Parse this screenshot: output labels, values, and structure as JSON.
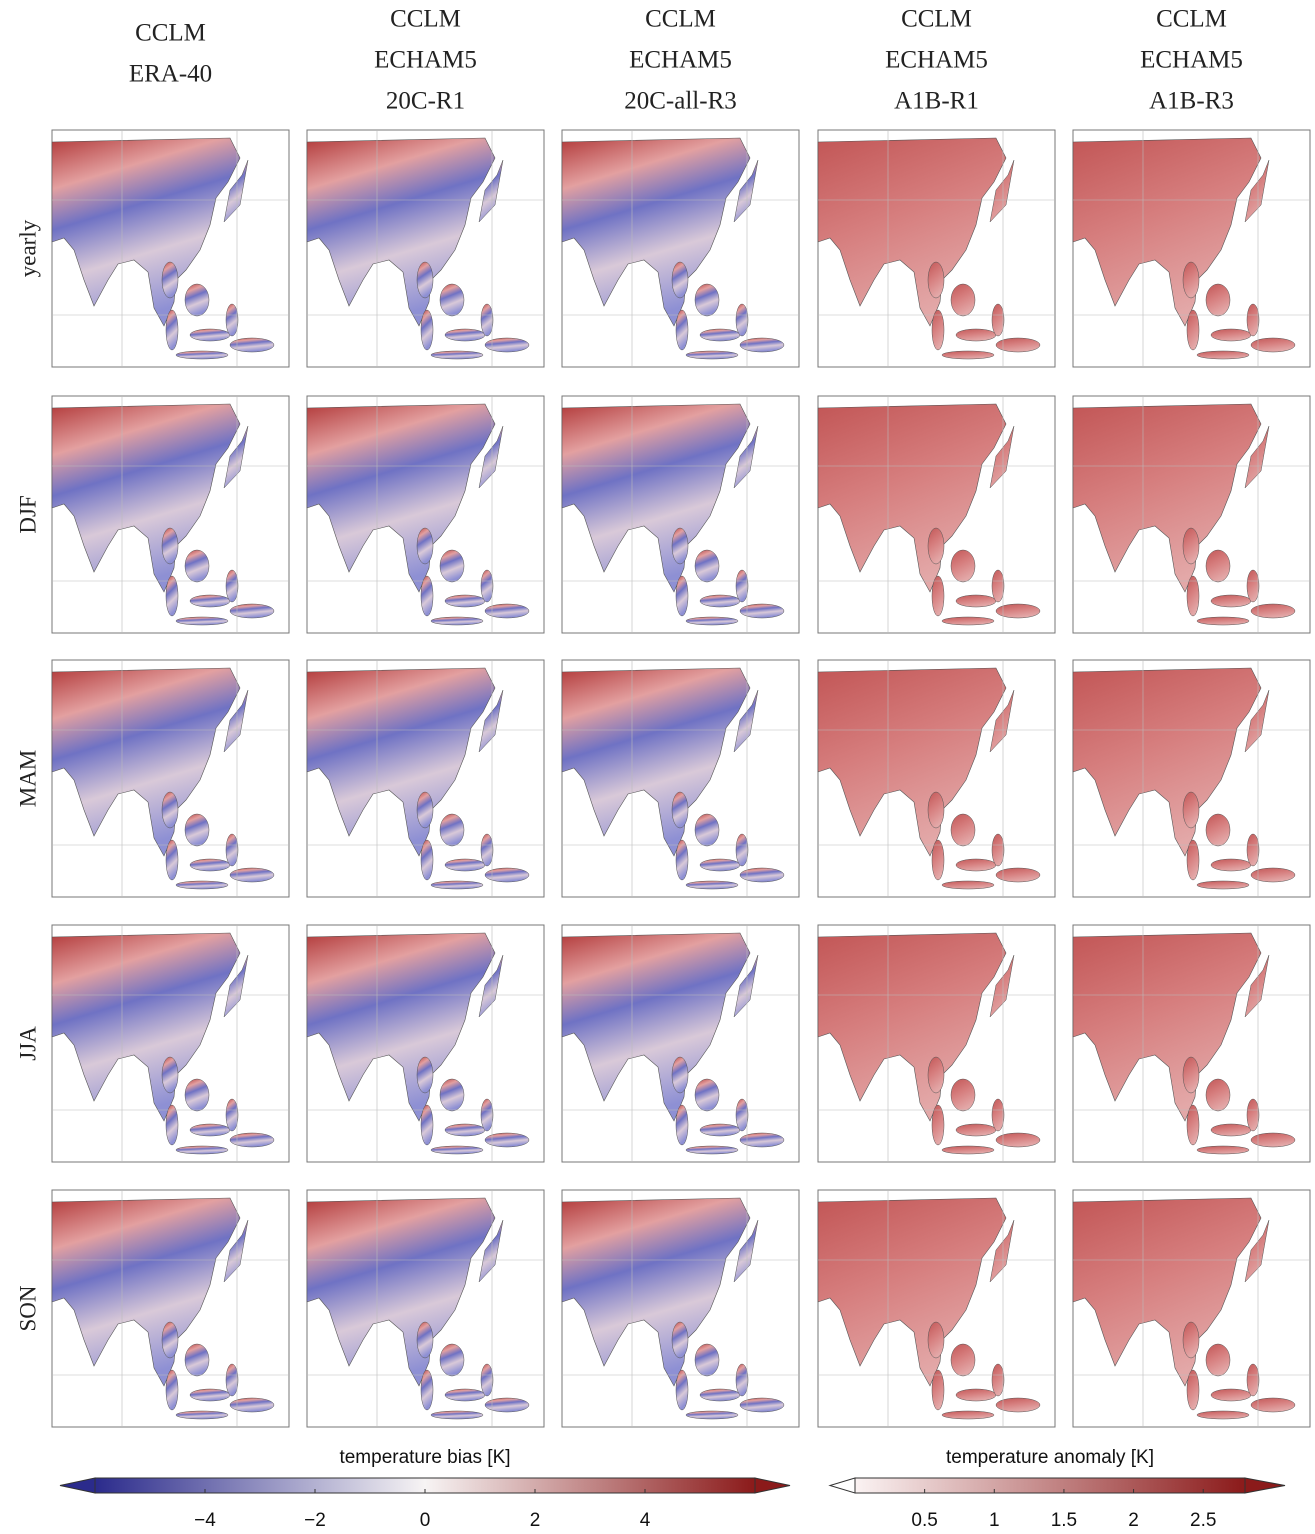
{
  "column_headers": [
    [
      "CCLM",
      "ERA-40"
    ],
    [
      "CCLM",
      "ECHAM5",
      "20C-R1"
    ],
    [
      "CCLM",
      "ECHAM5",
      "20C-all-R3"
    ],
    [
      "CCLM",
      "ECHAM5",
      "A1B-R1"
    ],
    [
      "CCLM",
      "ECHAM5",
      "A1B-R3"
    ]
  ],
  "row_labels": [
    "yearly",
    "DJF",
    "MAM",
    "JJA",
    "SON"
  ],
  "colorbars": [
    {
      "label": "temperature bias [K]",
      "lim": [
        -6,
        6
      ],
      "ticks": [
        {
          "value": -4,
          "label": "−4"
        },
        {
          "value": -2,
          "label": "−2"
        },
        0,
        2,
        4
      ]
    },
    {
      "label": "temperature anomaly [K]",
      "lim": [
        0,
        2.8
      ],
      "ticks": [
        0.5,
        1,
        1.5,
        2,
        2.5
      ]
    }
  ]
}
